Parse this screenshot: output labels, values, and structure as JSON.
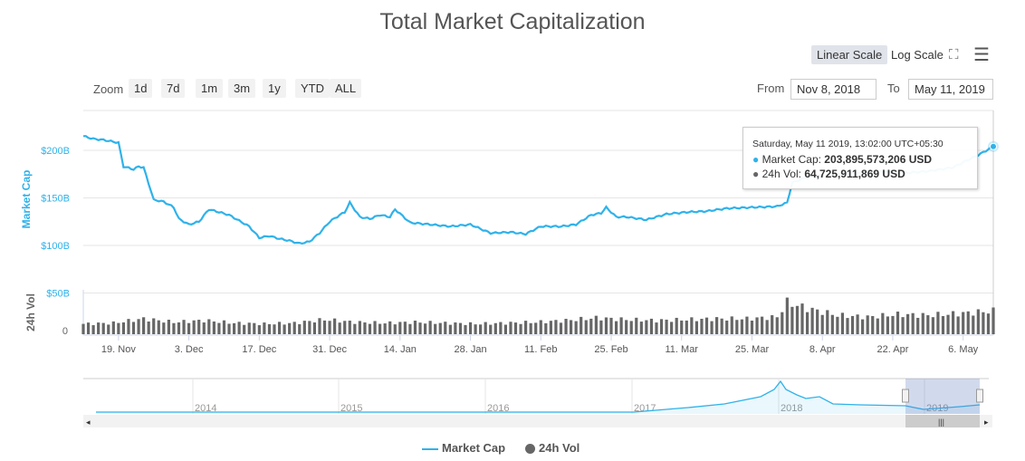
{
  "title": "Total Market Capitalization",
  "scale": {
    "linear": "Linear Scale",
    "log": "Log Scale",
    "fullscreen_icon": "fullscreen-icon",
    "menu_icon": "menu-icon"
  },
  "zoom": {
    "label": "Zoom",
    "buttons": [
      "1d",
      "7d",
      "1m",
      "3m",
      "1y",
      "YTD",
      "ALL"
    ]
  },
  "range": {
    "from_label": "From",
    "from": "Nov 8, 2018",
    "to_label": "To",
    "to": "May 11, 2019"
  },
  "tooltip": {
    "date": "Saturday, May 11 2019, 13:02:00 UTC+05:30",
    "cap_label": "Market Cap:",
    "cap_value": "203,895,573,206 USD",
    "vol_label": "24h Vol:",
    "vol_value": "64,725,911,869 USD"
  },
  "legend": {
    "cap": "Market Cap",
    "vol": "24h Vol"
  },
  "colors": {
    "cap": "#2fb2ea",
    "vol": "#666666"
  },
  "chart_data": {
    "type": "line",
    "title": "Total Market Capitalization",
    "ylabel": "Market Cap",
    "ylabel2": "24h Vol",
    "yticks": [
      "$200B",
      "$150B",
      "$100B",
      "$50B"
    ],
    "ytick_values": [
      200,
      150,
      100,
      50
    ],
    "vol_ticks": [
      "0"
    ],
    "xticks": [
      "19. Nov",
      "3. Dec",
      "17. Dec",
      "31. Dec",
      "14. Jan",
      "28. Jan",
      "11. Feb",
      "25. Feb",
      "11. Mar",
      "25. Mar",
      "8. Apr",
      "22. Apr",
      "6. May"
    ],
    "xtick_days": [
      7,
      21,
      35,
      49,
      63,
      77,
      91,
      105,
      119,
      133,
      147,
      161,
      175
    ],
    "x_range_days": [
      0,
      181
    ],
    "market_cap": {
      "days": [
        0,
        2,
        4,
        6,
        7,
        8,
        10,
        11,
        12,
        13,
        14,
        16,
        18,
        19,
        21,
        23,
        25,
        27,
        29,
        31,
        33,
        35,
        37,
        39,
        41,
        43,
        45,
        47,
        49,
        51,
        52,
        53,
        55,
        57,
        59,
        61,
        62,
        65,
        69,
        73,
        77,
        81,
        85,
        88,
        91,
        95,
        98,
        101,
        103,
        104,
        106,
        108,
        112,
        116,
        120,
        124,
        128,
        133,
        138,
        140,
        141,
        144,
        148,
        153,
        158,
        163,
        168,
        173,
        176,
        178,
        181
      ],
      "values": [
        215,
        212,
        211,
        209,
        208,
        183,
        180,
        183,
        182,
        165,
        148,
        146,
        140,
        128,
        122,
        125,
        138,
        135,
        132,
        126,
        120,
        108,
        110,
        107,
        105,
        102,
        104,
        113,
        125,
        132,
        135,
        145,
        130,
        128,
        132,
        130,
        138,
        124,
        122,
        120,
        122,
        113,
        114,
        112,
        120,
        120,
        122,
        132,
        134,
        140,
        130,
        130,
        127,
        133,
        135,
        136,
        139,
        140,
        141,
        145,
        166,
        172,
        174,
        176,
        178,
        176,
        178,
        182,
        190,
        195,
        204
      ]
    },
    "volume": {
      "days": [
        0,
        6,
        12,
        18,
        24,
        30,
        36,
        42,
        48,
        54,
        60,
        66,
        72,
        78,
        84,
        90,
        96,
        102,
        108,
        114,
        120,
        126,
        132,
        138,
        140,
        144,
        150,
        156,
        162,
        168,
        174,
        181
      ],
      "values": [
        12,
        13,
        18,
        14,
        16,
        13,
        12,
        13,
        17,
        14,
        13,
        14,
        13,
        12,
        13,
        14,
        16,
        19,
        17,
        16,
        17,
        18,
        18,
        20,
        37,
        30,
        22,
        20,
        23,
        22,
        24,
        27
      ]
    },
    "navigator": {
      "labels": [
        "2014",
        "2015",
        "2016",
        "2017",
        "2018",
        "2019"
      ]
    }
  }
}
